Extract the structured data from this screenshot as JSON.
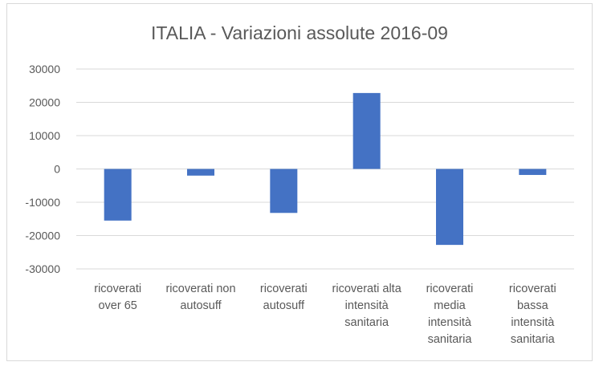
{
  "chart_data": {
    "type": "bar",
    "title": "ITALIA - Variazioni assolute 2016-09",
    "categories": [
      [
        "ricoverati",
        "over 65"
      ],
      [
        "ricoverati non",
        "autosuff"
      ],
      [
        "ricoverati",
        "autosuff"
      ],
      [
        "ricoverati alta",
        "intensità",
        "sanitaria"
      ],
      [
        "ricoverati",
        "media",
        "intensità",
        "sanitaria"
      ],
      [
        "ricoverati",
        "bassa",
        "intensità",
        "sanitaria"
      ]
    ],
    "values": [
      -15500,
      -2000,
      -13200,
      22800,
      -22800,
      -1800
    ],
    "ylim": [
      -30000,
      30000
    ],
    "yticks": [
      30000,
      20000,
      10000,
      0,
      -10000,
      -20000,
      -30000
    ],
    "ytick_labels": [
      "30000",
      "20000",
      "10000",
      "0",
      "-10000",
      "-20000",
      "-30000"
    ],
    "grid": true,
    "colors": {
      "bar": "#4472c4",
      "grid": "#d9d9d9",
      "text": "#595959"
    }
  }
}
